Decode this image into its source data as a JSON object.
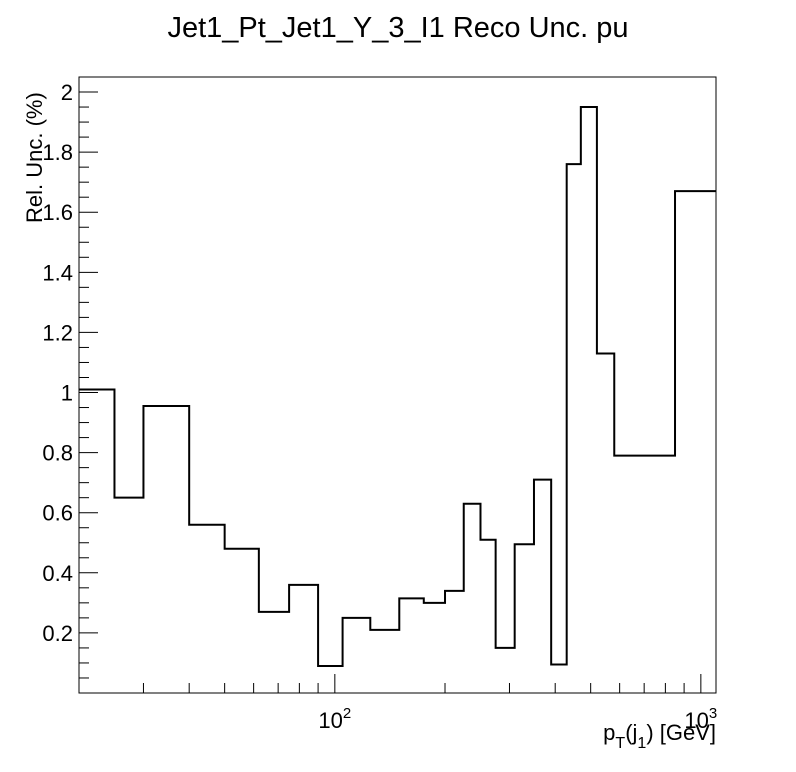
{
  "chart_data": {
    "type": "step",
    "title": "Jet1_Pt_Jet1_Y_3_I1 Reco Unc. pu",
    "xlabel": {
      "base": "p",
      "sub1": "T",
      "mid": "(j",
      "sub2": "1",
      "end": ") [GeV]"
    },
    "ylabel": "Rel. Unc. (%)",
    "x_scale": "log",
    "xlim": [
      20,
      1100
    ],
    "ylim": [
      0,
      2.05
    ],
    "x_tick_labels": [
      {
        "value": 100,
        "base": "10",
        "exp": "2"
      },
      {
        "value": 1000,
        "base": "10",
        "exp": "3"
      }
    ],
    "y_tick_labels": [
      "0.2",
      "0.4",
      "0.6",
      "0.8",
      "1",
      "1.2",
      "1.4",
      "1.6",
      "1.8",
      "2"
    ],
    "y_ticks": [
      0.2,
      0.4,
      0.6,
      0.8,
      1.0,
      1.2,
      1.4,
      1.6,
      1.8,
      2.0
    ],
    "bin_edges": [
      20,
      25,
      30,
      40,
      50,
      62,
      75,
      90,
      105,
      125,
      150,
      175,
      200,
      225,
      250,
      275,
      310,
      350,
      390,
      430,
      470,
      520,
      580,
      850,
      1100
    ],
    "values": [
      1.01,
      0.65,
      0.955,
      0.56,
      0.48,
      0.27,
      0.36,
      0.09,
      0.25,
      0.21,
      0.315,
      0.3,
      0.34,
      0.63,
      0.51,
      0.15,
      0.495,
      0.71,
      0.095,
      1.76,
      1.95,
      1.13,
      0.79,
      1.67
    ],
    "grid": false,
    "legend": "none",
    "line_color": "#000000"
  }
}
